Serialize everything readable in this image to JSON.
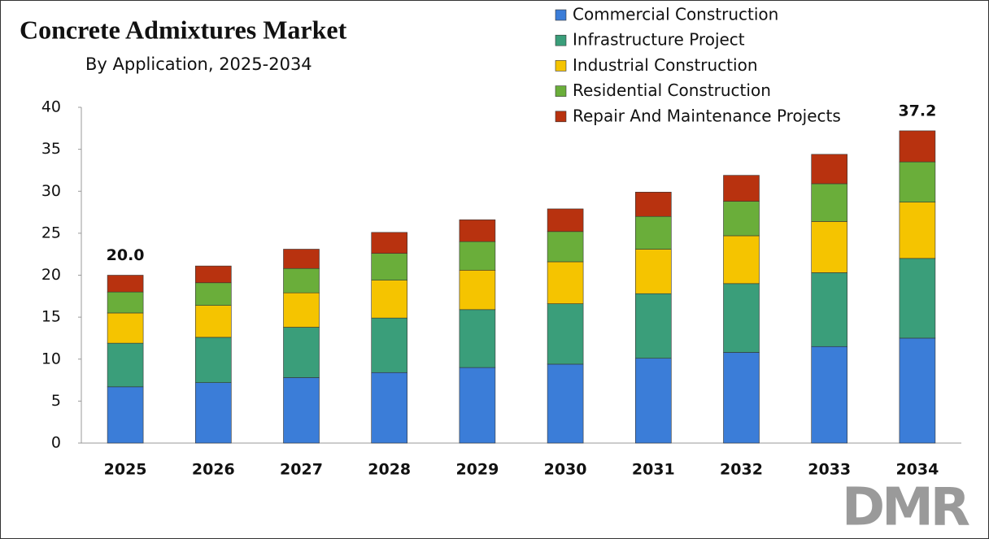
{
  "chart_data": {
    "type": "stacked_bar",
    "title": "Concrete Admixtures Market",
    "subtitle": "By Application, 2025-2034",
    "categories": [
      "2025",
      "2026",
      "2027",
      "2028",
      "2029",
      "2030",
      "2031",
      "2032",
      "2033",
      "2034"
    ],
    "series": [
      {
        "name": "Commercial Construction",
        "color": "#3b7dd8",
        "values": [
          6.7,
          7.2,
          7.8,
          8.4,
          9.0,
          9.4,
          10.1,
          10.8,
          11.5,
          12.5
        ]
      },
      {
        "name": "Infrastructure Project",
        "color": "#3a9e7a",
        "values": [
          5.2,
          5.4,
          6.0,
          6.5,
          6.9,
          7.2,
          7.7,
          8.2,
          8.8,
          9.5
        ]
      },
      {
        "name": "Industrial Construction",
        "color": "#f5c400",
        "values": [
          3.6,
          3.8,
          4.1,
          4.5,
          4.7,
          5.0,
          5.3,
          5.7,
          6.1,
          6.7
        ]
      },
      {
        "name": "Residential Construction",
        "color": "#6aae3a",
        "values": [
          2.5,
          2.7,
          2.9,
          3.2,
          3.4,
          3.6,
          3.9,
          4.1,
          4.5,
          4.8
        ]
      },
      {
        "name": "Repair And Maintenance Projects",
        "color": "#b8320f",
        "values": [
          2.0,
          2.0,
          2.3,
          2.5,
          2.6,
          2.7,
          2.9,
          3.1,
          3.5,
          3.7
        ]
      }
    ],
    "total_labels": [
      {
        "index": 0,
        "value": 20.0,
        "label": "20.0"
      },
      {
        "index": 9,
        "value": 37.2,
        "label": "37.2"
      }
    ],
    "ylim": [
      0,
      40
    ],
    "yticks": [
      0,
      5,
      10,
      15,
      20,
      25,
      30,
      35,
      40
    ],
    "legend": "top-right",
    "watermark": "DMR"
  }
}
